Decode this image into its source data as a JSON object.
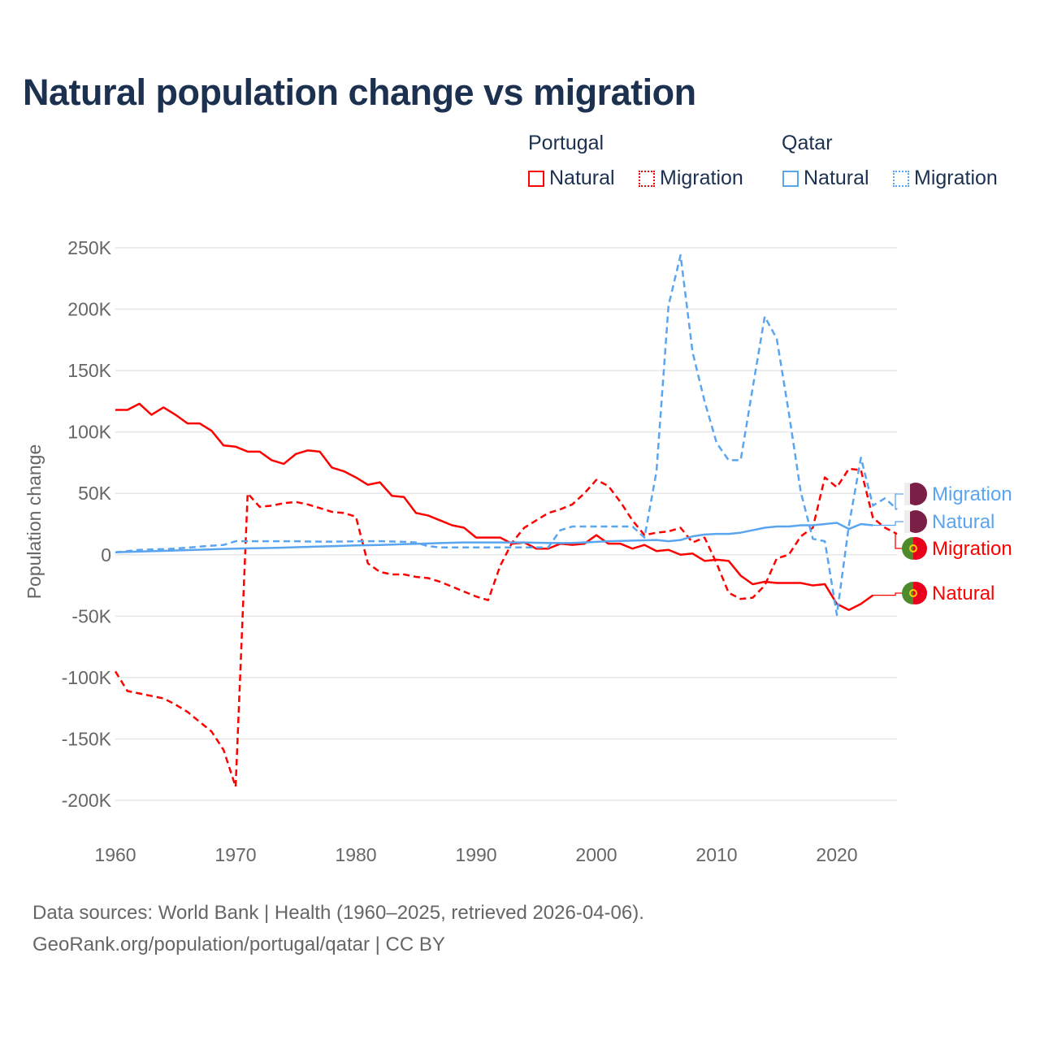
{
  "colors": {
    "portugal": "#ff0000",
    "qatar": "#5aa5ef",
    "grid": "#e6e6e6",
    "axis_text": "#666666",
    "title": "#1c3050"
  },
  "legend": {
    "groups": [
      {
        "name": "Portugal",
        "items": [
          {
            "label": "Natural",
            "style": "solid"
          },
          {
            "label": "Migration",
            "style": "dotted"
          }
        ]
      },
      {
        "name": "Qatar",
        "items": [
          {
            "label": "Natural",
            "style": "solid"
          },
          {
            "label": "Migration",
            "style": "dotted"
          }
        ]
      }
    ]
  },
  "chart_data": {
    "type": "line",
    "title": "Natural population change vs migration",
    "xlabel": "",
    "ylabel": "Population change",
    "xlim": [
      1960,
      2025
    ],
    "ylim": [
      -200000,
      250000
    ],
    "x_ticks": [
      1960,
      1970,
      1980,
      1990,
      2000,
      2010,
      2020
    ],
    "x_tick_labels": [
      "1960",
      "1970",
      "1980",
      "1990",
      "2000",
      "2010",
      "2020"
    ],
    "y_ticks": [
      250000,
      200000,
      150000,
      100000,
      50000,
      0,
      -50000,
      -100000,
      -150000,
      -200000
    ],
    "y_tick_labels": [
      "250K",
      "200K",
      "150K",
      "100K",
      "50K",
      "0",
      "-50K",
      "-100K",
      "-150K",
      "-200K"
    ],
    "grid": true,
    "legend_position": "top-right",
    "x_start": 1960,
    "units": "thousands",
    "series": [
      {
        "country": "Portugal",
        "name": "Natural",
        "end_label": "Natural",
        "color": "#ff0000",
        "dash": false,
        "values": [
          118,
          118,
          123,
          114,
          120,
          114,
          107,
          107,
          101,
          89,
          88,
          84,
          84,
          77,
          74,
          82,
          85,
          84,
          71,
          68,
          63,
          57,
          59,
          48,
          47,
          34,
          32,
          28,
          24,
          22,
          14,
          14,
          14,
          9,
          10,
          5,
          5,
          9,
          8,
          9,
          16,
          9,
          9,
          5,
          8,
          3,
          4,
          0,
          1,
          -5,
          -4,
          -5,
          -17,
          -24,
          -22,
          -23,
          -23,
          -23,
          -25,
          -24,
          -40,
          -45,
          -40,
          -33
        ]
      },
      {
        "country": "Portugal",
        "name": "Migration",
        "end_label": "Migration",
        "color": "#ff0000",
        "dash": true,
        "values": [
          -95,
          -111,
          -113,
          -115,
          -117,
          -122,
          -128,
          -136,
          -144,
          -159,
          -189,
          50,
          39,
          40,
          42,
          43,
          41,
          38,
          35,
          34,
          31,
          -7,
          -14,
          -16,
          -16,
          -18,
          -19,
          -22,
          -26,
          -30,
          -34,
          -37,
          -9,
          10,
          22,
          28,
          34,
          37,
          41,
          50,
          61,
          56,
          43,
          28,
          16,
          18,
          19,
          22,
          10,
          14,
          -7,
          -31,
          -36,
          -35,
          -25,
          -3,
          0,
          15,
          22,
          63,
          55,
          70,
          69,
          30,
          22,
          17
        ]
      },
      {
        "country": "Qatar",
        "name": "Natural",
        "end_label": "Natural",
        "color": "#5aa5ef",
        "dash": false,
        "values": [
          2,
          2.3,
          2.6,
          2.9,
          3.2,
          3.5,
          3.8,
          4.1,
          4.4,
          4.7,
          5,
          5.2,
          5.4,
          5.6,
          5.8,
          6.1,
          6.4,
          6.7,
          7,
          7.3,
          7.6,
          7.8,
          8,
          8.3,
          8.6,
          8.9,
          9.2,
          9.5,
          9.8,
          10,
          10,
          10,
          10,
          10,
          10,
          9.8,
          9.6,
          9.5,
          9.6,
          10,
          10.5,
          11,
          11.3,
          11.5,
          11.8,
          12,
          11,
          12,
          15,
          16.5,
          17,
          17,
          18,
          20,
          22,
          23,
          23,
          24,
          24,
          25,
          26,
          21,
          25,
          24
        ]
      },
      {
        "country": "Qatar",
        "name": "Migration",
        "end_label": "Migration",
        "color": "#5aa5ef",
        "dash": true,
        "values": [
          2,
          3,
          4,
          4.3,
          4.6,
          5,
          5.8,
          6.6,
          7.4,
          8,
          11,
          11,
          11,
          11,
          11,
          11,
          10.8,
          10.7,
          10.7,
          10.8,
          11,
          11,
          11,
          10.8,
          10.5,
          10,
          7,
          6,
          6,
          6,
          6,
          6,
          6,
          6,
          6,
          6,
          6,
          20,
          23,
          23,
          23,
          23,
          23,
          23,
          14,
          68,
          203,
          244,
          165,
          125,
          91,
          77,
          77,
          136,
          194,
          176,
          116,
          51,
          13,
          11,
          -49,
          24,
          79,
          40,
          46,
          37
        ]
      }
    ]
  },
  "footer": {
    "line1": "Data sources: World Bank | Health (1960–2025, retrieved 2026-04-06).",
    "line2": "GeoRank.org/population/portugal/qatar | CC BY"
  }
}
